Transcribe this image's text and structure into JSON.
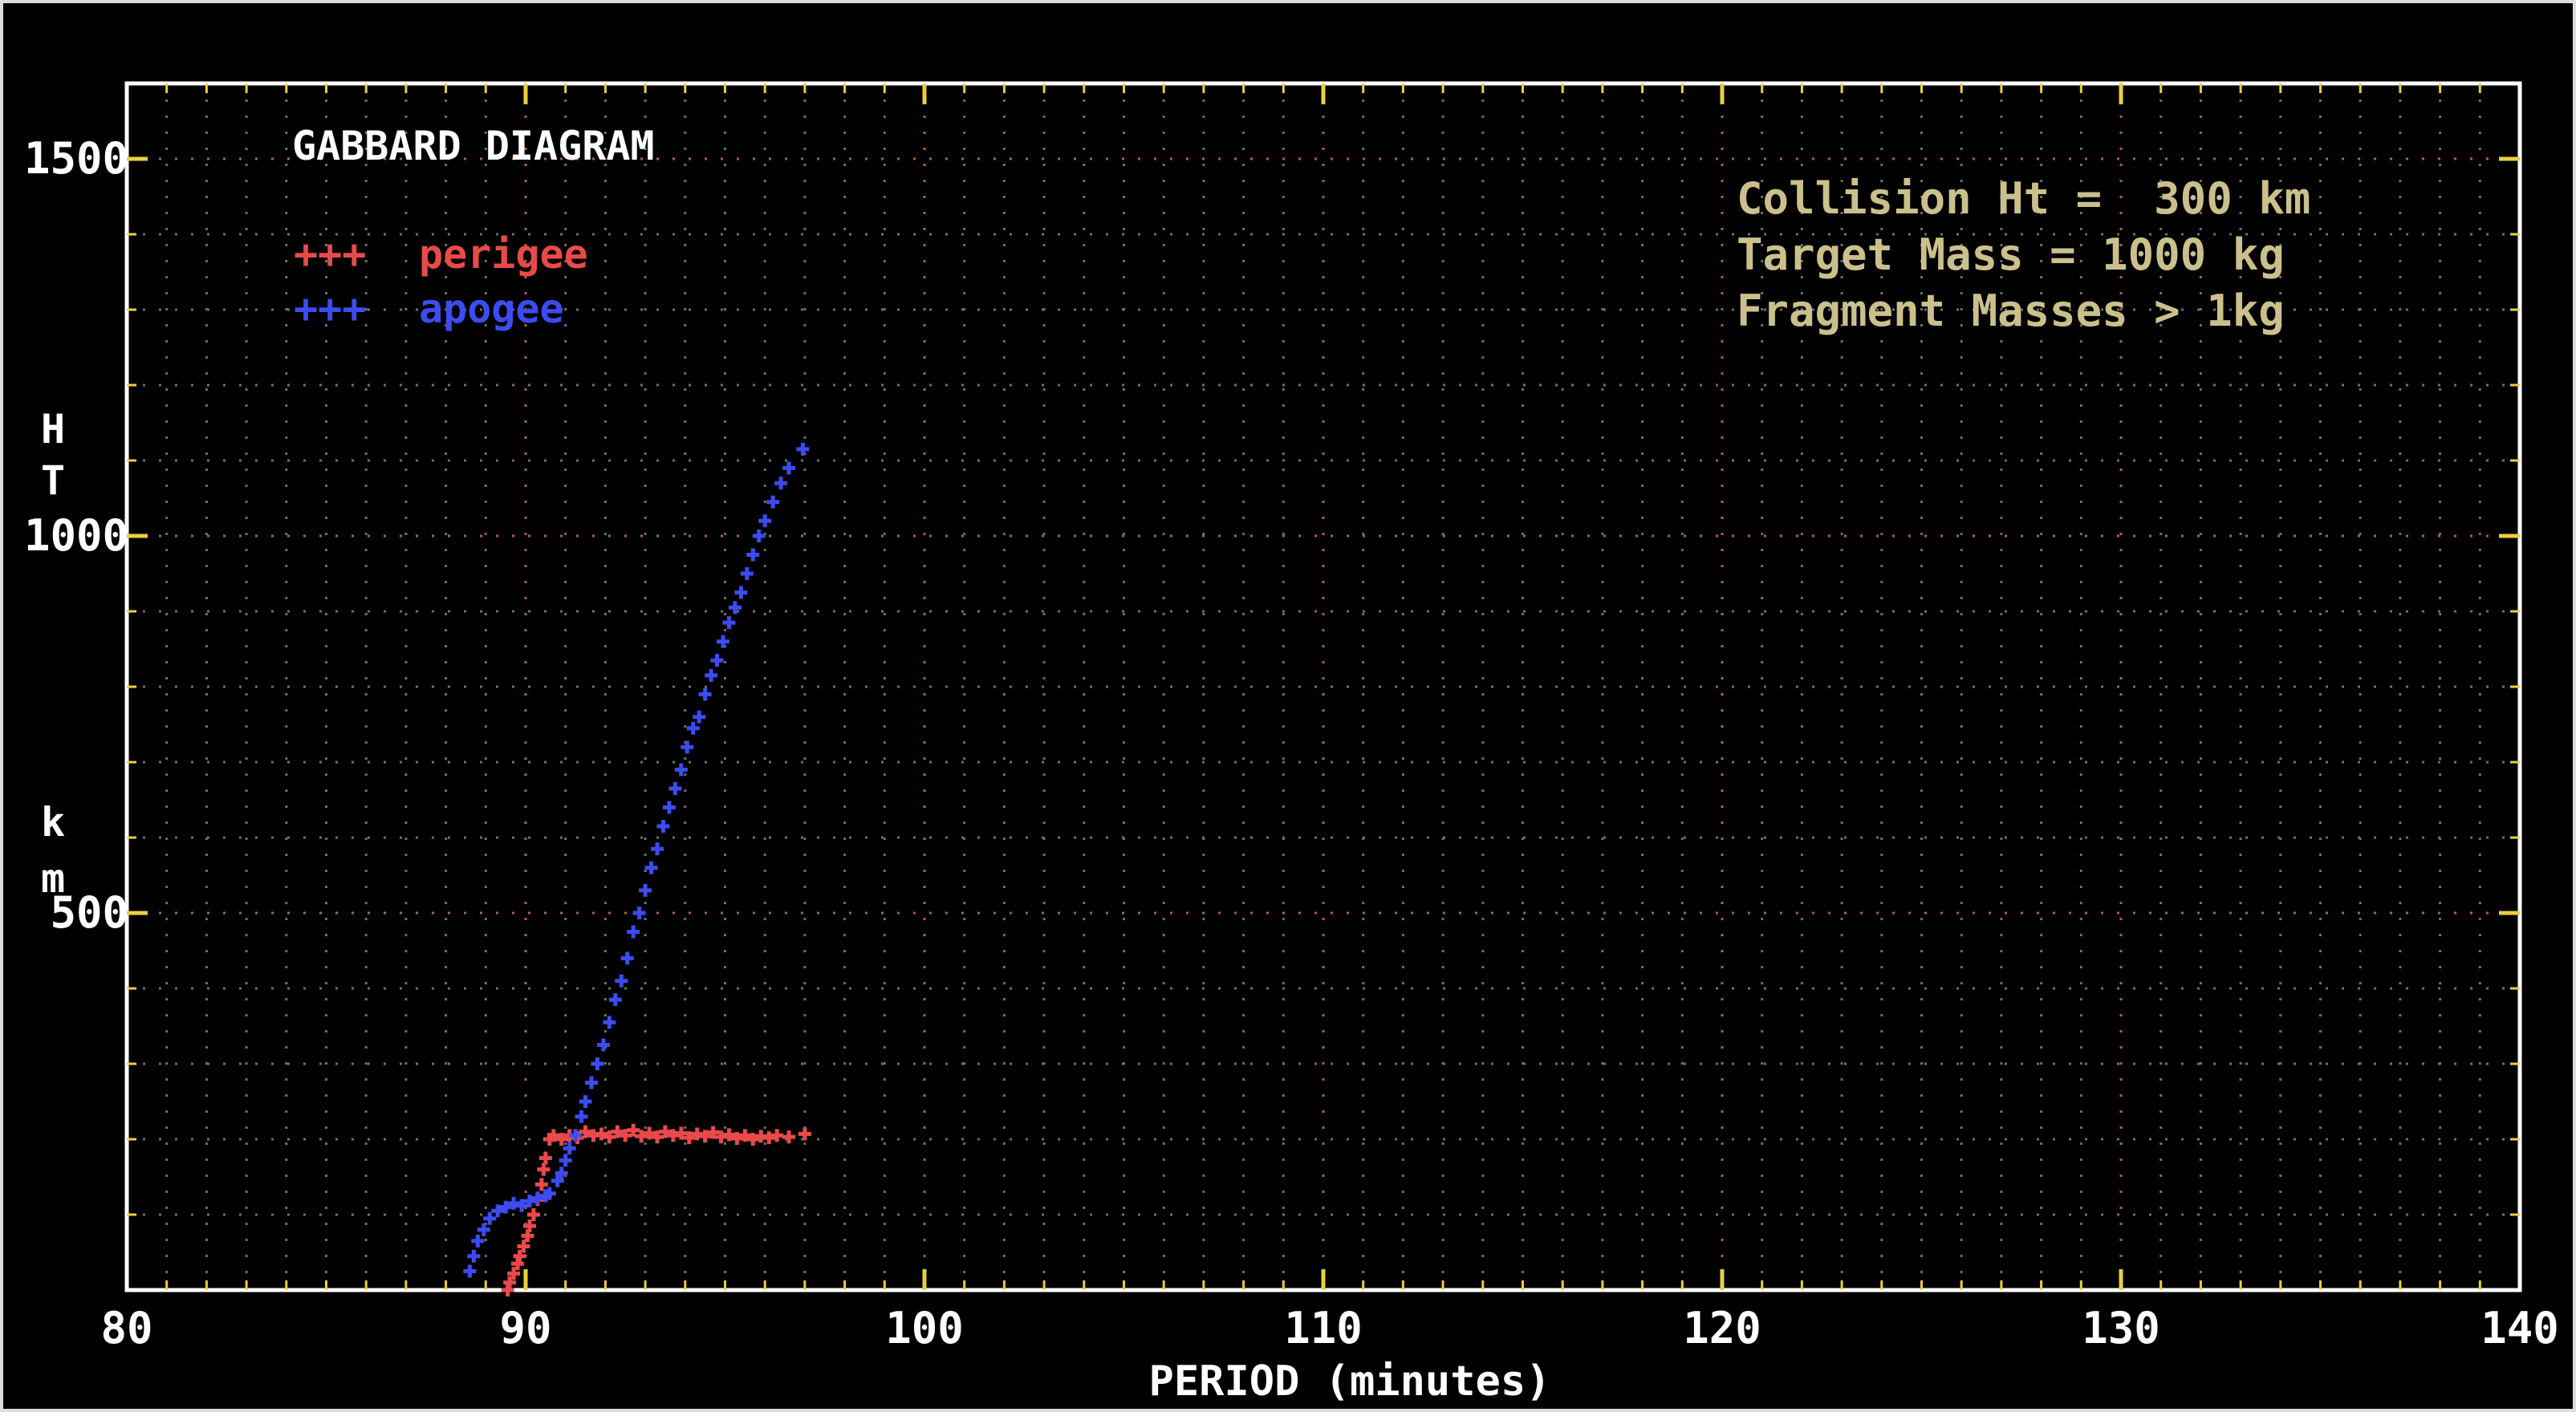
{
  "chart_data": {
    "type": "scatter",
    "title": "GABBARD DIAGRAM",
    "xlabel": "PERIOD (minutes)",
    "ylabel_chars": [
      "H",
      "T",
      "k",
      "m"
    ],
    "xlim": [
      80,
      140
    ],
    "ylim": [
      0,
      1600
    ],
    "x_ticks": [
      80,
      90,
      100,
      110,
      120,
      130,
      140
    ],
    "y_ticks": [
      500,
      1000,
      1500
    ],
    "x_minor_step": 1,
    "y_minor_step": 100,
    "grid": true,
    "legend": [
      {
        "marker": "+++",
        "label": "perigee",
        "color": "#e84a4a"
      },
      {
        "marker": "+++",
        "label": "apogee",
        "color": "#3c4cf0"
      }
    ],
    "annotations": [
      "Collision Ht =  300 km",
      "Target Mass = 1000 kg",
      "Fragment Masses > 1kg"
    ],
    "series": [
      {
        "name": "perigee",
        "color": "#e84a4a",
        "points": [
          [
            89.55,
            0
          ],
          [
            89.6,
            10
          ],
          [
            89.7,
            22
          ],
          [
            89.8,
            35
          ],
          [
            89.85,
            45
          ],
          [
            89.95,
            58
          ],
          [
            90.05,
            72
          ],
          [
            90.1,
            85
          ],
          [
            90.2,
            100
          ],
          [
            90.3,
            120
          ],
          [
            90.4,
            140
          ],
          [
            90.45,
            160
          ],
          [
            90.5,
            175
          ],
          [
            90.6,
            200
          ],
          [
            90.7,
            205
          ],
          [
            90.9,
            200
          ],
          [
            91.1,
            205
          ],
          [
            91.3,
            202
          ],
          [
            91.5,
            210
          ],
          [
            91.7,
            205
          ],
          [
            91.9,
            207
          ],
          [
            92.1,
            203
          ],
          [
            92.3,
            210
          ],
          [
            92.5,
            205
          ],
          [
            92.7,
            212
          ],
          [
            92.9,
            204
          ],
          [
            93.1,
            208
          ],
          [
            93.3,
            203
          ],
          [
            93.5,
            210
          ],
          [
            93.7,
            205
          ],
          [
            93.9,
            208
          ],
          [
            94.1,
            202
          ],
          [
            94.3,
            207
          ],
          [
            94.5,
            204
          ],
          [
            94.7,
            209
          ],
          [
            94.9,
            203
          ],
          [
            95.1,
            206
          ],
          [
            95.3,
            201
          ],
          [
            95.5,
            205
          ],
          [
            95.7,
            200
          ],
          [
            95.9,
            204
          ],
          [
            96.1,
            202
          ],
          [
            96.3,
            205
          ],
          [
            96.6,
            203
          ],
          [
            97.0,
            207
          ]
        ]
      },
      {
        "name": "apogee",
        "color": "#3c4cf0",
        "points": [
          [
            88.6,
            25
          ],
          [
            88.7,
            45
          ],
          [
            88.8,
            65
          ],
          [
            88.95,
            80
          ],
          [
            89.1,
            95
          ],
          [
            89.3,
            105
          ],
          [
            89.5,
            110
          ],
          [
            89.7,
            115
          ],
          [
            89.9,
            112
          ],
          [
            90.1,
            118
          ],
          [
            90.3,
            122
          ],
          [
            90.5,
            125
          ],
          [
            90.6,
            128
          ],
          [
            90.8,
            145
          ],
          [
            90.9,
            155
          ],
          [
            91.0,
            172
          ],
          [
            91.1,
            188
          ],
          [
            91.25,
            205
          ],
          [
            91.4,
            230
          ],
          [
            91.5,
            250
          ],
          [
            91.65,
            275
          ],
          [
            91.8,
            300
          ],
          [
            91.95,
            325
          ],
          [
            92.1,
            355
          ],
          [
            92.25,
            385
          ],
          [
            92.4,
            410
          ],
          [
            92.55,
            440
          ],
          [
            92.7,
            475
          ],
          [
            92.85,
            500
          ],
          [
            93.0,
            530
          ],
          [
            93.15,
            560
          ],
          [
            93.3,
            585
          ],
          [
            93.45,
            615
          ],
          [
            93.6,
            640
          ],
          [
            93.75,
            665
          ],
          [
            93.9,
            690
          ],
          [
            94.05,
            720
          ],
          [
            94.2,
            745
          ],
          [
            94.35,
            760
          ],
          [
            94.5,
            790
          ],
          [
            94.65,
            815
          ],
          [
            94.8,
            835
          ],
          [
            94.95,
            860
          ],
          [
            95.1,
            885
          ],
          [
            95.25,
            905
          ],
          [
            95.4,
            925
          ],
          [
            95.55,
            950
          ],
          [
            95.7,
            975
          ],
          [
            95.85,
            1000
          ],
          [
            96.0,
            1020
          ],
          [
            96.2,
            1045
          ],
          [
            96.4,
            1070
          ],
          [
            96.6,
            1090
          ],
          [
            96.95,
            1115
          ]
        ]
      }
    ]
  }
}
